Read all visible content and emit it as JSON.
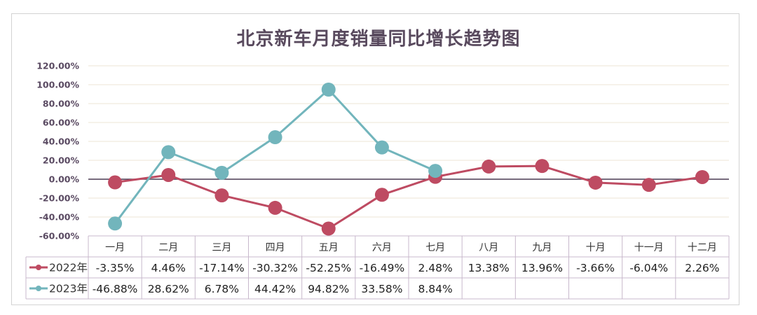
{
  "chart_data": {
    "type": "line",
    "title": "北京新车月度销量同比增长趋势图",
    "categories": [
      "一月",
      "二月",
      "三月",
      "四月",
      "五月",
      "六月",
      "七月",
      "八月",
      "九月",
      "十月",
      "十一月",
      "十二月"
    ],
    "yticks": [
      "120.00%",
      "100.00%",
      "80.00%",
      "60.00%",
      "40.00%",
      "20.00%",
      "0.00%",
      "-20.00%",
      "-40.00%",
      "-60.00%"
    ],
    "ylim": [
      -60,
      120
    ],
    "legend_position": "bottom data table",
    "series": [
      {
        "name": "2022年",
        "color": "#be4b62",
        "values": [
          -3.35,
          4.46,
          -17.14,
          -30.32,
          -52.25,
          -16.49,
          2.48,
          13.38,
          13.96,
          -3.66,
          -6.04,
          2.26
        ],
        "labels": [
          "-3.35%",
          "4.46%",
          "-17.14%",
          "-30.32%",
          "-52.25%",
          "-16.49%",
          "2.48%",
          "13.38%",
          "13.96%",
          "-3.66%",
          "-6.04%",
          "2.26%"
        ]
      },
      {
        "name": "2023年",
        "color": "#72b5bc",
        "values": [
          -46.88,
          28.62,
          6.78,
          44.42,
          94.82,
          33.58,
          8.84,
          null,
          null,
          null,
          null,
          null
        ],
        "labels": [
          "-46.88%",
          "28.62%",
          "6.78%",
          "44.42%",
          "94.82%",
          "33.58%",
          "8.84%",
          "",
          "",
          "",
          "",
          ""
        ]
      }
    ]
  }
}
